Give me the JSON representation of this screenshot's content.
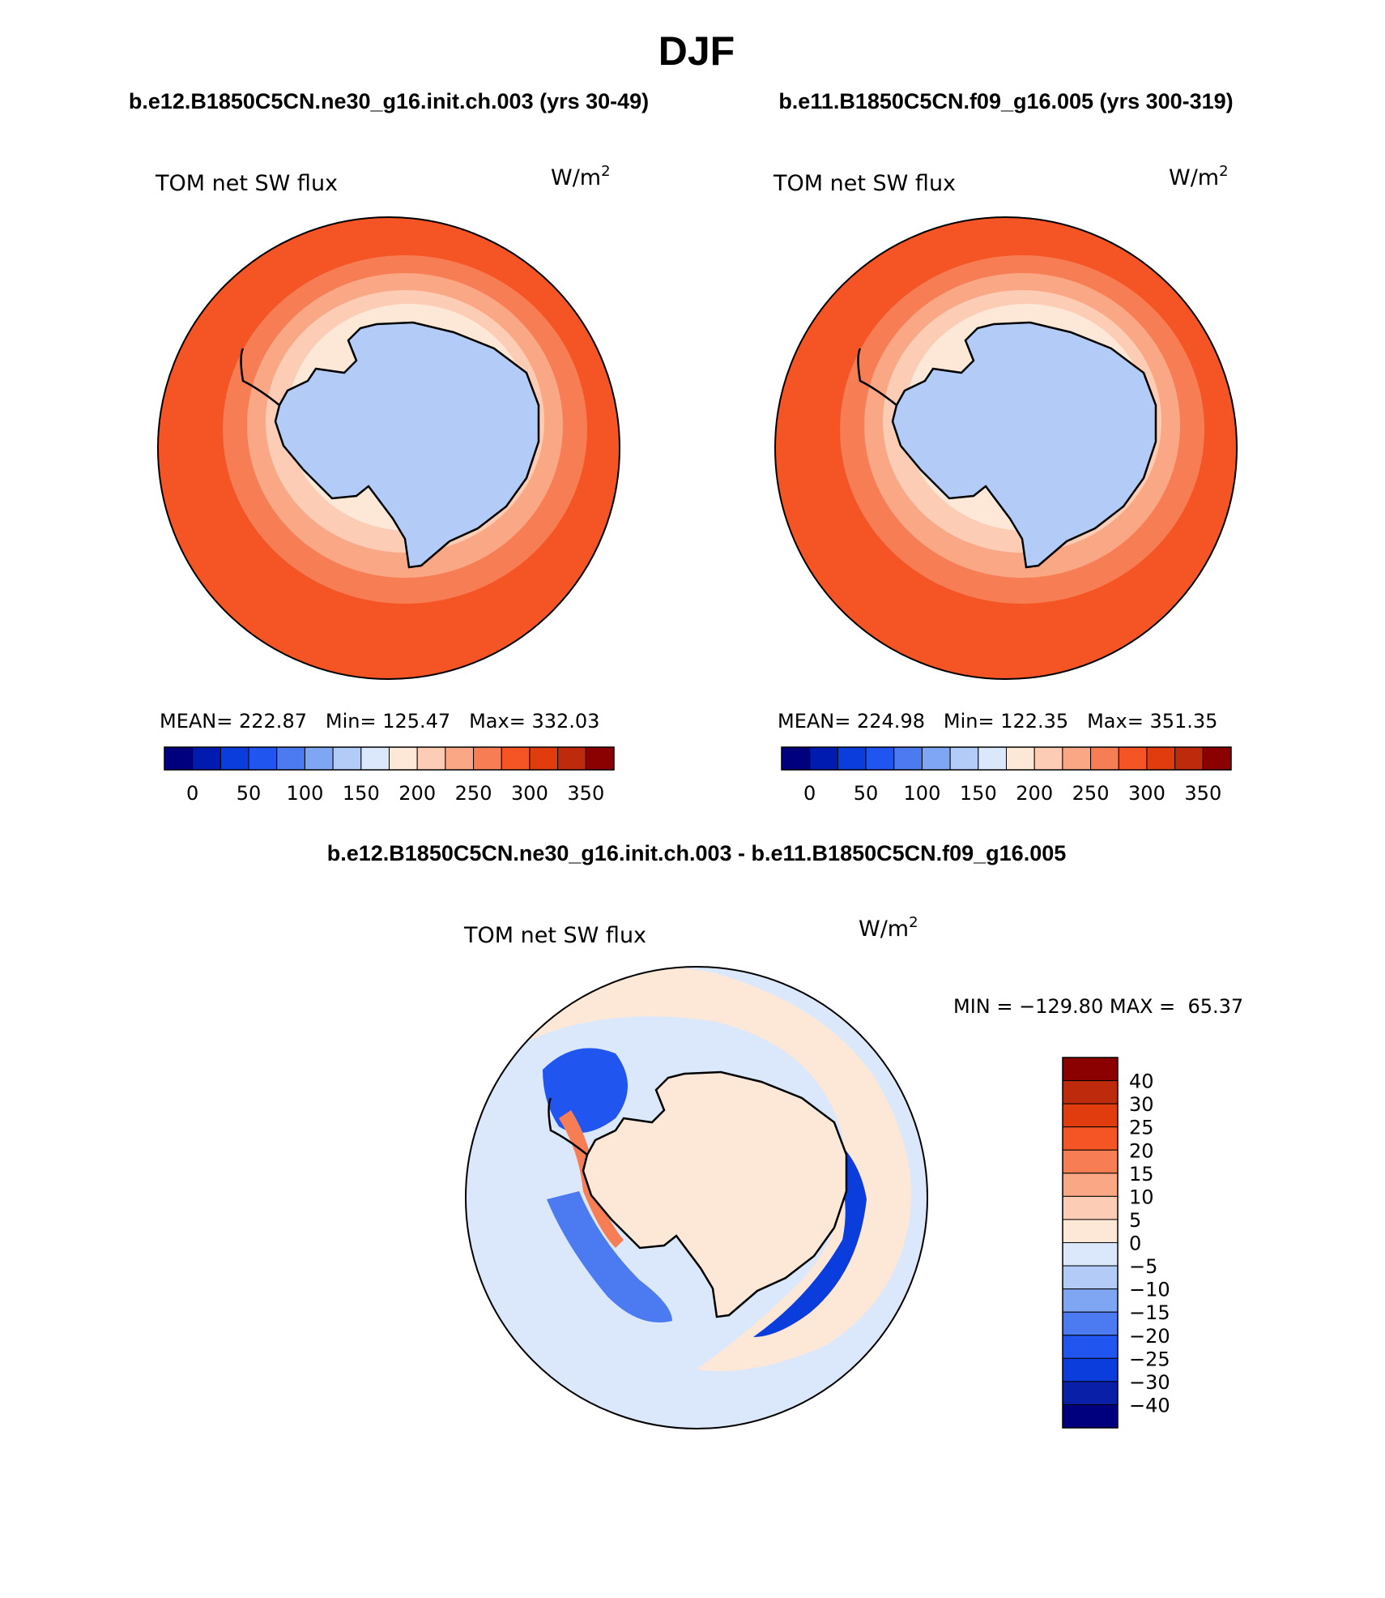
{
  "page_title": "DJF",
  "colors": {
    "fill_ramp": [
      "#00007f",
      "#001cb0",
      "#0a3ddc",
      "#2155f0",
      "#4c7af0",
      "#7ea6f2",
      "#b3cbf7",
      "#dbe8fb",
      "#fde8d8",
      "#fccdb4",
      "#f9a785",
      "#f77d55",
      "#f55524",
      "#e03c0d",
      "#be2b0c",
      "#8b0000"
    ],
    "diff_ramp": [
      "#00007f",
      "#0a1fa8",
      "#0a3ddc",
      "#2155f0",
      "#4c7af0",
      "#7ea6f2",
      "#b3cbf7",
      "#dbe8fb",
      "#fde8d8",
      "#fccdb4",
      "#f9a785",
      "#f77d55",
      "#f55524",
      "#e03c0d",
      "#be2b0c",
      "#8b0000"
    ],
    "ocean": "#f55524",
    "antarctica": "#b3cbf7"
  },
  "chart_data": [
    {
      "type": "heatmap",
      "projection": "south-polar-stereographic",
      "case_title": "b.e12.B1850C5CN.ne30_g16.init.ch.003 (yrs 30-49)",
      "variable": "TOM net SW flux",
      "units_base": "W/m",
      "units_exp": "2",
      "stats": {
        "mean_label": "MEAN=",
        "mean": "222.87",
        "min_label": "Min=",
        "min": "125.47",
        "max_label": "Max=",
        "max": "332.03"
      },
      "colorbar": {
        "orientation": "horizontal",
        "levels": [
          0,
          25,
          50,
          75,
          100,
          125,
          150,
          175,
          200,
          225,
          250,
          275,
          300,
          325,
          350
        ],
        "tick_labels": [
          "0",
          "50",
          "100",
          "150",
          "200",
          "250",
          "300",
          "350"
        ]
      }
    },
    {
      "type": "heatmap",
      "projection": "south-polar-stereographic",
      "case_title": "b.e11.B1850C5CN.f09_g16.005 (yrs 300-319)",
      "variable": "TOM net SW flux",
      "units_base": "W/m",
      "units_exp": "2",
      "stats": {
        "mean_label": "MEAN=",
        "mean": "224.98",
        "min_label": "Min=",
        "min": "122.35",
        "max_label": "Max=",
        "max": "351.35"
      },
      "colorbar": {
        "orientation": "horizontal",
        "levels": [
          0,
          25,
          50,
          75,
          100,
          125,
          150,
          175,
          200,
          225,
          250,
          275,
          300,
          325,
          350
        ],
        "tick_labels": [
          "0",
          "50",
          "100",
          "150",
          "200",
          "250",
          "300",
          "350"
        ]
      }
    },
    {
      "type": "heatmap",
      "projection": "south-polar-stereographic",
      "case_title": "b.e12.B1850C5CN.ne30_g16.init.ch.003 - b.e11.B1850C5CN.f09_g16.005",
      "variable": "TOM net SW flux",
      "units_base": "W/m",
      "units_exp": "2",
      "stats": {
        "min_label": "MIN =",
        "min": "−129.80",
        "max_label": "MAX =",
        "max": "65.37"
      },
      "colorbar": {
        "orientation": "vertical",
        "levels": [
          -40,
          -30,
          -25,
          -20,
          -15,
          -10,
          -5,
          0,
          5,
          10,
          15,
          20,
          25,
          30,
          40
        ],
        "tick_labels": [
          "40",
          "30",
          "25",
          "20",
          "15",
          "10",
          "5",
          "0",
          "−5",
          "−10",
          "−15",
          "−20",
          "−25",
          "−30",
          "−40"
        ]
      }
    }
  ]
}
